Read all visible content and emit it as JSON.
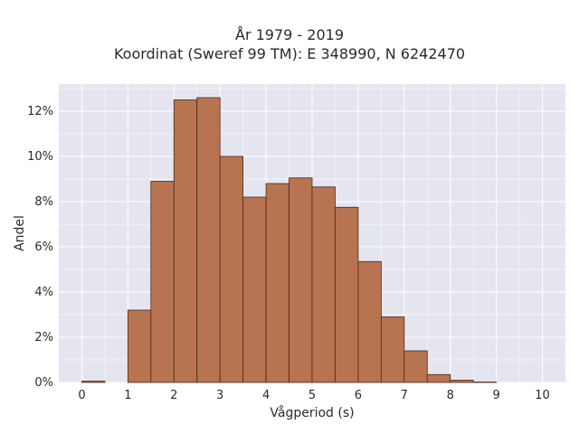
{
  "chart_data": {
    "type": "bar",
    "title": "År 1979 - 2019",
    "subtitle": "Koordinat (Sweref 99 TM): E 348990, N 6242470",
    "xlabel": "Vågperiod (s)",
    "ylabel": "Andel",
    "xlim": [
      -0.5,
      10.5
    ],
    "ylim": [
      0,
      13.2
    ],
    "x_ticks": [
      "0",
      "1",
      "2",
      "3",
      "4",
      "5",
      "6",
      "7",
      "8",
      "9",
      "10"
    ],
    "y_ticks": [
      "0%",
      "2%",
      "4%",
      "6%",
      "8%",
      "10%",
      "12%"
    ],
    "bin_width": 0.5,
    "bins": [
      {
        "start": 0.0,
        "value": 0.06
      },
      {
        "start": 0.5,
        "value": 0.0
      },
      {
        "start": 1.0,
        "value": 3.2
      },
      {
        "start": 1.5,
        "value": 8.9
      },
      {
        "start": 2.0,
        "value": 12.5
      },
      {
        "start": 2.5,
        "value": 12.6
      },
      {
        "start": 3.0,
        "value": 10.0
      },
      {
        "start": 3.5,
        "value": 8.2
      },
      {
        "start": 4.0,
        "value": 8.8
      },
      {
        "start": 4.5,
        "value": 9.05
      },
      {
        "start": 5.0,
        "value": 8.65
      },
      {
        "start": 5.5,
        "value": 7.75
      },
      {
        "start": 6.0,
        "value": 5.35
      },
      {
        "start": 6.5,
        "value": 2.9
      },
      {
        "start": 7.0,
        "value": 1.4
      },
      {
        "start": 7.5,
        "value": 0.35
      },
      {
        "start": 8.0,
        "value": 0.1
      },
      {
        "start": 8.5,
        "value": 0.02
      }
    ],
    "grid": true,
    "colors": {
      "bar_fill": "#b87450",
      "bar_edge": "#4a2a1a",
      "plot_bg": "#e5e5f0",
      "grid": "#ffffff"
    }
  }
}
